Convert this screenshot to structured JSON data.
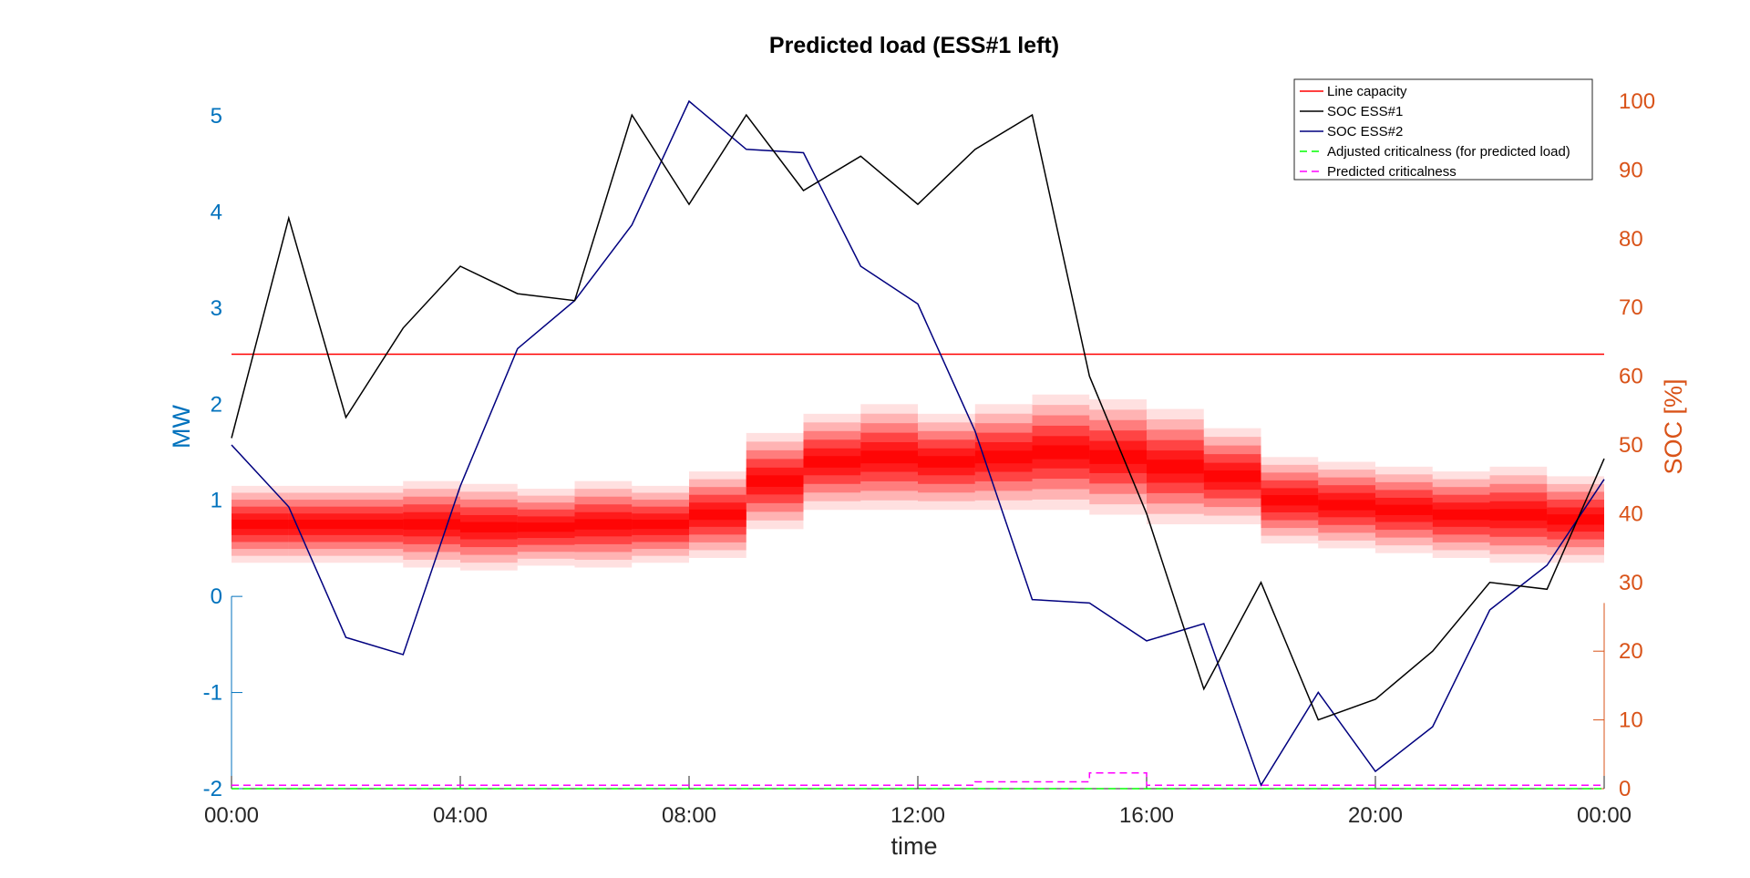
{
  "chart_data": {
    "type": "line",
    "title": "Predicted load (ESS#1 left)",
    "xlabel": "time",
    "ylabel_left": "MW",
    "ylabel_right": "SOC [%]",
    "x_ticks": [
      "00:00",
      "04:00",
      "08:00",
      "12:00",
      "16:00",
      "20:00",
      "00:00"
    ],
    "x_range_hours": [
      0,
      24
    ],
    "ylim_left": [
      -2,
      5.3
    ],
    "ylim_right": [
      0,
      100
    ],
    "yticks_left": [
      "5",
      "4",
      "3",
      "2",
      "1",
      "0",
      "-1",
      "-2"
    ],
    "yticks_right": [
      "100",
      "90",
      "80",
      "70",
      "60",
      "50",
      "40",
      "30",
      "20",
      "10",
      "0"
    ],
    "colors": {
      "left_axis": "#0072BD",
      "right_axis": "#D95319",
      "line_capacity": "#FF0000",
      "soc_ess1": "#000000",
      "soc_ess2": "#00007F",
      "adjusted_criticalness": "#00FF00",
      "predicted_criticalness": "#FF00FF",
      "heatmap": "#FF0000"
    },
    "series": [
      {
        "name": "Line capacity",
        "axis": "left",
        "style": "solid",
        "hours": [
          0,
          24
        ],
        "values": [
          2.52,
          2.52
        ]
      },
      {
        "name": "SOC ESS#1",
        "axis": "right",
        "style": "solid",
        "hours": [
          0,
          1,
          2,
          3,
          4,
          5,
          6,
          7,
          8,
          9,
          10,
          11,
          12,
          13,
          14,
          15,
          16,
          17,
          18,
          19,
          20,
          21,
          22,
          23,
          24
        ],
        "values": [
          51,
          83,
          54,
          67,
          76,
          72,
          71,
          98,
          85,
          98,
          87,
          92,
          85,
          93,
          98,
          60,
          40,
          14.5,
          30,
          10,
          13,
          20,
          30,
          29,
          48
        ]
      },
      {
        "name": "SOC ESS#2",
        "axis": "right",
        "style": "solid",
        "hours": [
          0,
          1,
          2,
          3,
          4,
          5,
          6,
          7,
          8,
          9,
          10,
          11,
          12,
          13,
          14,
          15,
          16,
          17,
          18,
          19,
          20,
          21,
          22,
          23,
          24
        ],
        "values": [
          50,
          41,
          22,
          19.5,
          44,
          64,
          71,
          82,
          100,
          93,
          92.5,
          76,
          70.5,
          52,
          27.5,
          27,
          21.5,
          24,
          0.5,
          14,
          2.5,
          9,
          26,
          32.5,
          45
        ]
      },
      {
        "name": "Adjusted criticalness (for predicted load)",
        "axis": "right",
        "style": "dashed",
        "hours": [
          0,
          24
        ],
        "values": [
          0,
          0
        ]
      },
      {
        "name": "Predicted criticalness",
        "axis": "right",
        "style": "dashed",
        "hours": [
          0,
          13,
          13,
          15,
          15,
          16,
          16,
          24
        ],
        "values": [
          0.5,
          0.5,
          1,
          1,
          2.3,
          2.3,
          0.5,
          0.5
        ]
      }
    ],
    "heatmap": {
      "description_units": "MW bands per hour: center, band edges at increasing opacity",
      "hours": [
        0,
        1,
        2,
        3,
        4,
        5,
        6,
        7,
        8,
        9,
        10,
        11,
        12,
        13,
        14,
        15,
        16,
        17,
        18,
        19,
        20,
        21,
        22,
        23
      ],
      "center": [
        0.75,
        0.75,
        0.75,
        0.75,
        0.72,
        0.72,
        0.75,
        0.75,
        0.85,
        1.2,
        1.4,
        1.45,
        1.4,
        1.45,
        1.5,
        1.45,
        1.35,
        1.25,
        1.0,
        0.95,
        0.9,
        0.85,
        0.85,
        0.8
      ],
      "halfwidth": [
        0.4,
        0.4,
        0.4,
        0.45,
        0.45,
        0.4,
        0.45,
        0.4,
        0.45,
        0.5,
        0.5,
        0.55,
        0.5,
        0.55,
        0.6,
        0.6,
        0.6,
        0.5,
        0.45,
        0.45,
        0.45,
        0.45,
        0.5,
        0.45
      ]
    },
    "legend": {
      "position": "top-right",
      "entries": [
        "Line capacity",
        "SOC ESS#1",
        "SOC ESS#2",
        "Adjusted criticalness (for predicted load)",
        "Predicted criticalness"
      ]
    }
  }
}
